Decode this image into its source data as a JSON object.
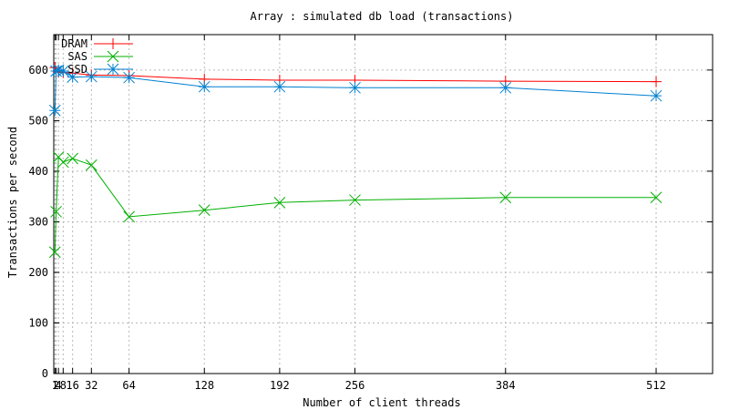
{
  "chart_data": {
    "type": "line",
    "title": "Array : simulated db load (transactions)",
    "xlabel": "Number of client threads",
    "ylabel": "Transactions per second",
    "xlim": [
      0,
      560
    ],
    "ylim": [
      0,
      670
    ],
    "grid": true,
    "legend_position": "top-left",
    "xticks": [
      {
        "value": 1,
        "label": "1"
      },
      {
        "value": 2,
        "label": "2"
      },
      {
        "value": 4,
        "label": "4"
      },
      {
        "value": 8,
        "label": "8"
      },
      {
        "value": 16,
        "label": "16"
      },
      {
        "value": 32,
        "label": "32"
      },
      {
        "value": 64,
        "label": "64"
      },
      {
        "value": 128,
        "label": "128"
      },
      {
        "value": 192,
        "label": "192"
      },
      {
        "value": 256,
        "label": "256"
      },
      {
        "value": 384,
        "label": "384"
      },
      {
        "value": 512,
        "label": "512"
      }
    ],
    "yticks": [
      0,
      100,
      200,
      300,
      400,
      500,
      600
    ],
    "series": [
      {
        "name": "DRAM",
        "color": "#ff0000",
        "marker": "plus",
        "x": [
          1,
          2,
          4,
          8,
          16,
          32,
          64,
          128,
          192,
          256,
          384,
          512
        ],
        "y": [
          605,
          598,
          596,
          595,
          594,
          590,
          589,
          582,
          580,
          580,
          578,
          577
        ]
      },
      {
        "name": "SAS",
        "color": "#00b000",
        "marker": "x",
        "x": [
          1,
          2,
          4,
          8,
          16,
          32,
          64,
          128,
          192,
          256,
          384,
          512
        ],
        "y": [
          240,
          320,
          428,
          418,
          425,
          412,
          310,
          323,
          338,
          343,
          348,
          348
        ]
      },
      {
        "name": "SSD",
        "color": "#0080d0",
        "marker": "star",
        "x": [
          1,
          2,
          4,
          8,
          16,
          32,
          64,
          128,
          192,
          256,
          384,
          512
        ],
        "y": [
          520,
          598,
          600,
          598,
          586,
          587,
          585,
          567,
          567,
          565,
          565,
          549
        ]
      }
    ]
  }
}
